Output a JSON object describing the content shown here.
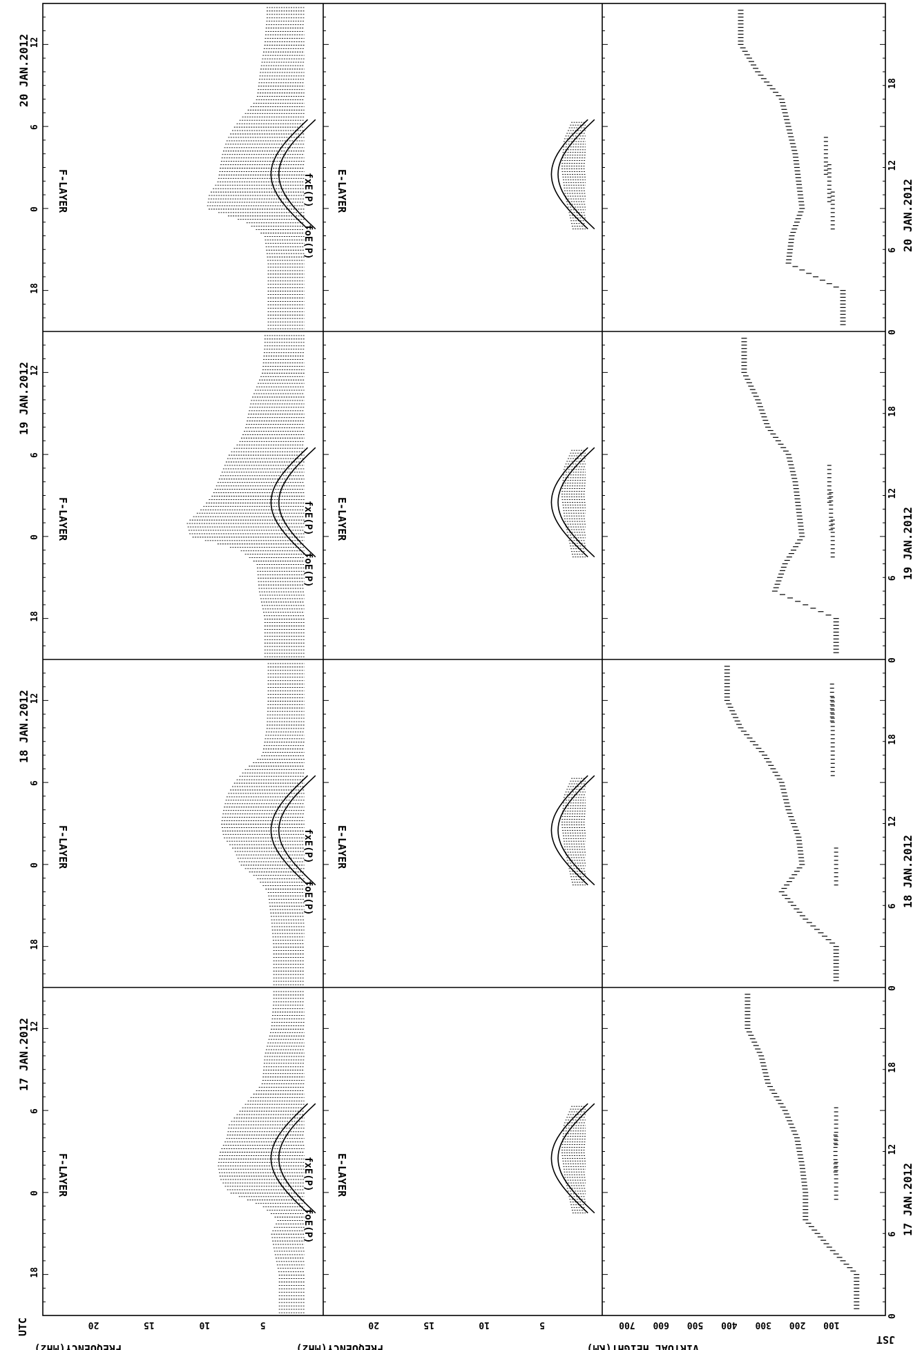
{
  "chart_data": {
    "type": "scatter",
    "time_axis_label": "UTC",
    "local_time_axis_label": "JST",
    "utc_ticks": [
      "18",
      "0",
      "6",
      "12"
    ],
    "jst_ticks": [
      "0",
      "6",
      "12",
      "18"
    ],
    "frequency_axis_label": "FREQUENCY(MHz)",
    "frequency_ticks": [
      "5",
      "10",
      "15",
      "20"
    ],
    "height_axis_label": "VIRTUAL HEIGHT(KM)",
    "height_ticks": [
      "100",
      "200",
      "300",
      "400",
      "500",
      "600",
      "700"
    ],
    "f_layer_label": "F-LAYER",
    "e_layer_label": "E-LAYER",
    "curve_label_fxe": "fxE(P)",
    "curve_label_foe": "foE(P)",
    "f_panel_range_mhz": [
      0,
      24
    ],
    "e_panel_range_mhz": [
      0,
      24
    ],
    "height_range_km": [
      0,
      750
    ],
    "days": [
      {
        "date": "17 JAN.2012",
        "jst_date": "17 JAN.2012",
        "f_envelope_mhz": [
          [
            -6,
            3.5
          ],
          [
            -4,
            4
          ],
          [
            -3,
            4.2
          ],
          [
            -2,
            3.6
          ],
          [
            -1,
            5
          ],
          [
            0,
            8
          ],
          [
            1,
            8.8
          ],
          [
            2,
            9
          ],
          [
            3,
            8.8
          ],
          [
            4,
            8.2
          ],
          [
            5,
            8
          ],
          [
            6,
            7
          ],
          [
            7,
            6
          ],
          [
            8,
            5
          ],
          [
            10,
            4.8
          ],
          [
            12,
            4.2
          ],
          [
            14,
            4
          ]
        ],
        "e_envelope_mhz": [
          [
            -1.5,
            2.2
          ],
          [
            1,
            2.9
          ],
          [
            3,
            3.2
          ],
          [
            5,
            3
          ],
          [
            6.5,
            2.2
          ]
        ],
        "h_trace_km": [
          [
            -6,
            40
          ],
          [
            -4,
            120
          ],
          [
            -2,
            190
          ],
          [
            0,
            190
          ],
          [
            2,
            200
          ],
          [
            4,
            215
          ],
          [
            6,
            250
          ],
          [
            8,
            300
          ],
          [
            10,
            320
          ],
          [
            12,
            360
          ]
        ],
        "es_trace_km": [
          [
            1,
            100
          ],
          [
            3,
            102
          ],
          [
            5,
            100
          ]
        ]
      },
      {
        "date": "18 JAN.2012",
        "jst_date": "18 JAN.2012",
        "f_envelope_mhz": [
          [
            -6,
            4
          ],
          [
            -4,
            4.2
          ],
          [
            -2,
            4.5
          ],
          [
            -1,
            5.5
          ],
          [
            0,
            7
          ],
          [
            1,
            7.5
          ],
          [
            2,
            8.5
          ],
          [
            3,
            8.7
          ],
          [
            4,
            8.5
          ],
          [
            5,
            8.2
          ],
          [
            6,
            7.5
          ],
          [
            7,
            6.5
          ],
          [
            8,
            5
          ],
          [
            10,
            4.6
          ],
          [
            12,
            4.5
          ],
          [
            14,
            4.5
          ]
        ],
        "e_envelope_mhz": [
          [
            -1.5,
            2.2
          ],
          [
            1,
            2.9
          ],
          [
            3,
            3.2
          ],
          [
            5,
            3
          ],
          [
            6.5,
            2.2
          ]
        ],
        "h_trace_km": [
          [
            -6,
            100
          ],
          [
            -4,
            190
          ],
          [
            -2,
            260
          ],
          [
            0,
            200
          ],
          [
            2,
            210
          ],
          [
            4,
            240
          ],
          [
            6,
            260
          ],
          [
            8,
            310
          ],
          [
            10,
            380
          ],
          [
            12,
            420
          ]
        ],
        "es_trace_km": [
          [
            0,
            100
          ],
          [
            8,
            110
          ],
          [
            11,
            110
          ],
          [
            12,
            112
          ]
        ]
      },
      {
        "date": "19 JAN.2012",
        "jst_date": "19 JAN.2012",
        "f_envelope_mhz": [
          [
            -6,
            4.8
          ],
          [
            -4,
            5.3
          ],
          [
            -2,
            5.5
          ],
          [
            -1,
            7
          ],
          [
            0,
            11.5
          ],
          [
            1,
            11.8
          ],
          [
            2,
            10.5
          ],
          [
            3,
            9.5
          ],
          [
            4,
            9
          ],
          [
            5,
            8.5
          ],
          [
            6,
            8
          ],
          [
            7,
            7
          ],
          [
            8,
            6.5
          ],
          [
            10,
            6
          ],
          [
            12,
            5
          ],
          [
            14,
            4.8
          ]
        ],
        "e_envelope_mhz": [
          [
            -1.5,
            2.2
          ],
          [
            1,
            2.9
          ],
          [
            3,
            3.2
          ],
          [
            5,
            3
          ],
          [
            6.5,
            2.2
          ]
        ],
        "h_trace_km": [
          [
            -6,
            100
          ],
          [
            -4,
            280
          ],
          [
            -2,
            250
          ],
          [
            0,
            200
          ],
          [
            2,
            210
          ],
          [
            4,
            220
          ],
          [
            6,
            240
          ],
          [
            8,
            300
          ],
          [
            10,
            330
          ],
          [
            12,
            370
          ]
        ],
        "es_trace_km": [
          [
            0,
            110
          ],
          [
            2,
            115
          ],
          [
            4,
            120
          ]
        ]
      },
      {
        "date": "20 JAN.2012",
        "jst_date": "20 JAN.2012",
        "f_envelope_mhz": [
          [
            -6,
            4.5
          ],
          [
            -4,
            4.5
          ],
          [
            -2,
            4.8
          ],
          [
            -1,
            6.5
          ],
          [
            0,
            10
          ],
          [
            1,
            9.8
          ],
          [
            2,
            9
          ],
          [
            3,
            8.8
          ],
          [
            4,
            8.6
          ],
          [
            5,
            8.2
          ],
          [
            6,
            7.5
          ],
          [
            7,
            6.5
          ],
          [
            8,
            5.5
          ],
          [
            10,
            5.2
          ],
          [
            12,
            4.8
          ],
          [
            14,
            4.6
          ]
        ],
        "e_envelope_mhz": [
          [
            -1.5,
            2.2
          ],
          [
            1,
            2.9
          ],
          [
            3,
            3.2
          ],
          [
            5,
            3
          ],
          [
            6.5,
            2.2
          ]
        ],
        "h_trace_km": [
          [
            -6,
            80
          ],
          [
            -4,
            240
          ],
          [
            -2,
            230
          ],
          [
            0,
            200
          ],
          [
            2,
            210
          ],
          [
            4,
            220
          ],
          [
            6,
            240
          ],
          [
            8,
            260
          ],
          [
            10,
            330
          ],
          [
            12,
            380
          ]
        ],
        "es_trace_km": [
          [
            0,
            110
          ],
          [
            2,
            120
          ],
          [
            4,
            130
          ]
        ]
      }
    ]
  }
}
